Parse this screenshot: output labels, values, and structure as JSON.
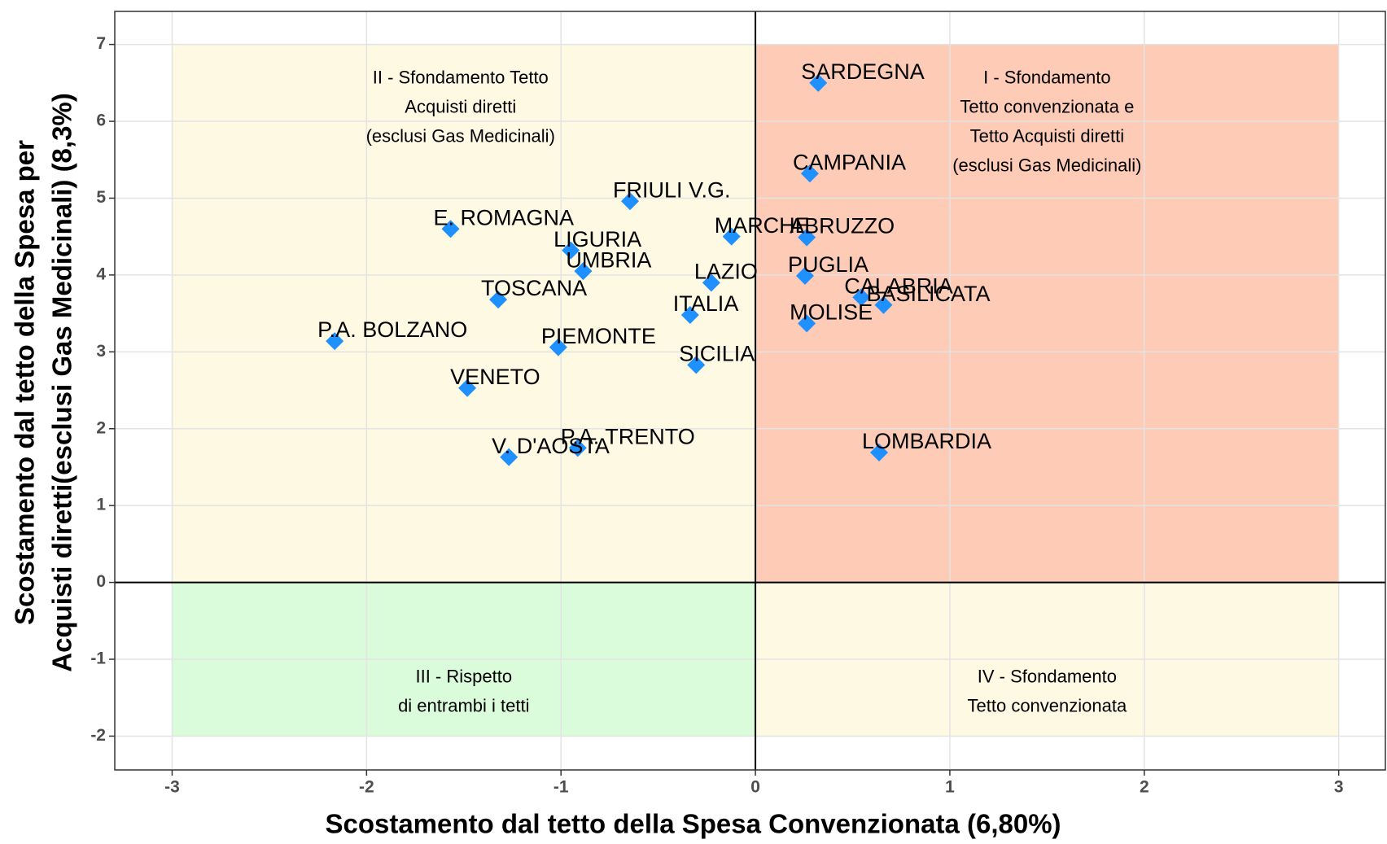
{
  "chart_data": {
    "type": "scatter",
    "xlabel": "Scostamento dal tetto della Spesa Convenzionata (6,80%)",
    "ylabel": [
      "Scostamento dal tetto della Spesa per",
      "Acquisti diretti(esclusi Gas Medicinali) (8,3%)"
    ],
    "xlim": [
      -3.295,
      3.24
    ],
    "ylim": [
      -2.44,
      7.43
    ],
    "xticks": [
      -3,
      -2,
      -1,
      0,
      1,
      2,
      3
    ],
    "yticks": [
      -2,
      -1,
      0,
      1,
      2,
      3,
      4,
      5,
      6,
      7
    ],
    "grid": true,
    "quadrants": [
      {
        "lines": [
          "I - Sfondamento",
          "Tetto convenzionata e",
          "Tetto Acquisti diretti",
          "(esclusi Gas Medicinali)"
        ],
        "color": "#fdcbb6",
        "xrange": [
          0,
          3
        ],
        "yrange": [
          0,
          7
        ]
      },
      {
        "lines": [
          "II - Sfondamento Tetto",
          "Acquisti diretti",
          "(esclusi Gas Medicinali)"
        ],
        "color": "#fdf9e2",
        "xrange": [
          -3,
          0
        ],
        "yrange": [
          0,
          7
        ]
      },
      {
        "lines": [
          "III - Rispetto",
          "di entrambi i tetti"
        ],
        "color": "#dafcda",
        "xrange": [
          -3,
          0
        ],
        "yrange": [
          -2,
          0
        ]
      },
      {
        "lines": [
          "IV - Sfondamento",
          "Tetto convenzionata"
        ],
        "color": "#fdf9e2",
        "xrange": [
          0,
          3
        ],
        "yrange": [
          -2,
          0
        ]
      }
    ],
    "series": [
      {
        "color": "#1e90ff",
        "labels": [
          "SARDEGNA",
          "CAMPANIA",
          "FRIULI V.G.",
          "E. ROMAGNA",
          "MARCHE",
          "ABRUZZO",
          "LIGURIA",
          "UMBRIA",
          "PUGLIA",
          "LAZIO",
          "CALABRIA",
          "BASILICATA",
          "TOSCANA",
          "ITALIA",
          "MOLISE",
          "P.A. BOLZANO",
          "PIEMONTE",
          "SICILIA",
          "VENETO",
          "P.A. TRENTO",
          "V. D'AOSTA",
          "LOMBARDIA"
        ],
        "x": [
          0.323,
          0.28,
          -0.645,
          -1.568,
          -0.123,
          0.264,
          -0.95,
          -0.886,
          0.255,
          -0.227,
          0.545,
          0.659,
          -1.323,
          -0.336,
          0.264,
          -2.164,
          -1.014,
          -0.305,
          -1.482,
          -0.914,
          -1.268,
          0.636
        ],
        "values": [
          6.5,
          5.32,
          4.96,
          4.6,
          4.5,
          4.49,
          4.32,
          4.05,
          3.99,
          3.9,
          3.71,
          3.61,
          3.68,
          3.48,
          3.37,
          3.14,
          3.06,
          2.83,
          2.53,
          1.75,
          1.63,
          1.69
        ]
      }
    ]
  }
}
